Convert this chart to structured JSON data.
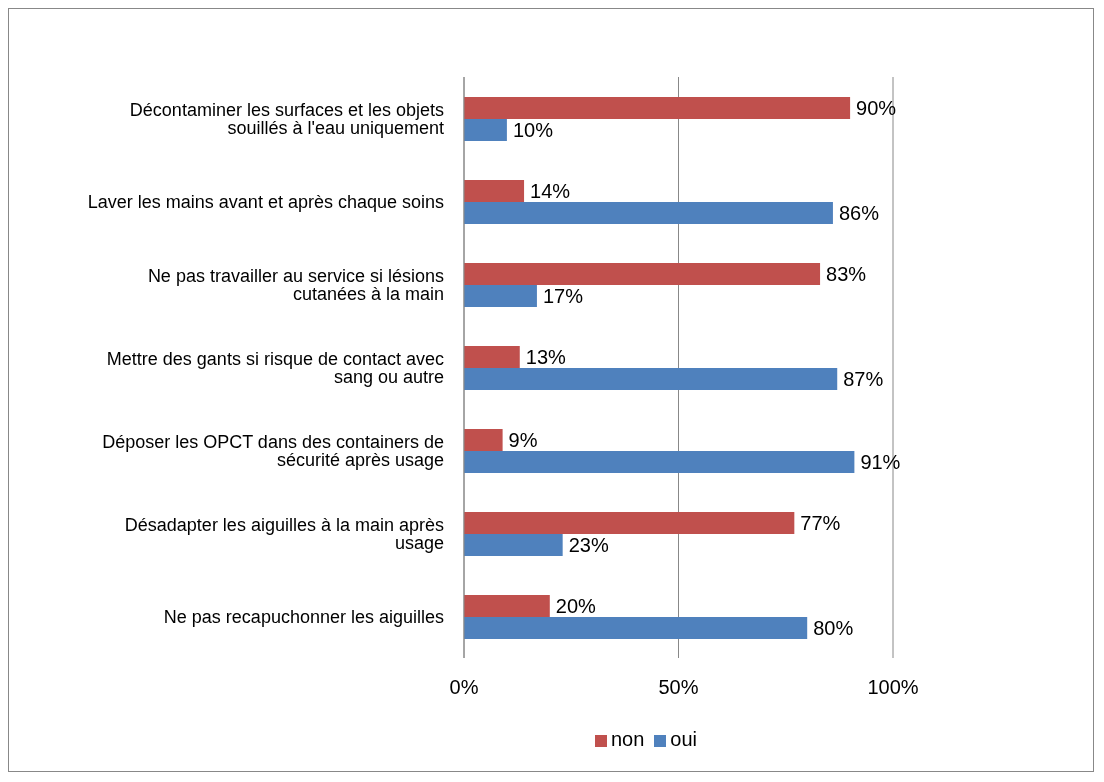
{
  "chart_data": {
    "type": "bar",
    "orientation": "horizontal",
    "categories": [
      "Décontaminer les surfaces et les objets souillés à l'eau uniquement",
      "Laver les mains avant et après chaque soins",
      "Ne pas travailler au service si lésions cutanées à la main",
      "Mettre des gants si risque de contact avec sang ou autre",
      "Déposer les OPCT dans des containers de sécurité après usage",
      "Désadapter les aiguilles à la main après usage",
      "Ne pas recapuchonner les aiguilles"
    ],
    "series": [
      {
        "name": "non",
        "color": "#c0504d",
        "values": [
          90,
          14,
          83,
          13,
          9,
          77,
          20
        ],
        "value_labels": [
          "90%",
          "14%",
          "83%",
          "13%",
          "9%",
          "77%",
          "20%"
        ]
      },
      {
        "name": "oui",
        "color": "#4f81bd",
        "values": [
          10,
          86,
          17,
          87,
          91,
          23,
          80
        ],
        "value_labels": [
          "10%",
          "86%",
          "17%",
          "87%",
          "91%",
          "23%",
          "80%"
        ]
      }
    ],
    "xlim": [
      0,
      100
    ],
    "xticks": [
      {
        "value": 0,
        "label": "0%"
      },
      {
        "value": 50,
        "label": "50%"
      },
      {
        "value": 100,
        "label": "100%"
      }
    ],
    "grid": "x",
    "legend": "bottom"
  }
}
